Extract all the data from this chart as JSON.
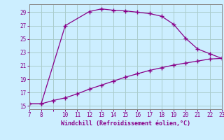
{
  "xlabel": "Windchill (Refroidissement éolien,°C)",
  "bg_color": "#cceeff",
  "grid_color": "#aacccc",
  "line_color": "#880088",
  "marker": "+",
  "upper_x": [
    7,
    8,
    10,
    12,
    13,
    14,
    15,
    16,
    17,
    18,
    19,
    20,
    21,
    22,
    23
  ],
  "upper_y": [
    15.3,
    15.3,
    27.0,
    29.1,
    29.5,
    29.3,
    29.2,
    29.0,
    28.8,
    28.4,
    27.2,
    25.1,
    23.5,
    22.8,
    22.1
  ],
  "lower_x": [
    7,
    8,
    9,
    10,
    11,
    12,
    13,
    14,
    15,
    16,
    17,
    18,
    19,
    20,
    21,
    22,
    23
  ],
  "lower_y": [
    15.3,
    15.3,
    15.8,
    16.2,
    16.8,
    17.5,
    18.1,
    18.7,
    19.3,
    19.8,
    20.3,
    20.7,
    21.1,
    21.4,
    21.7,
    22.0,
    22.1
  ],
  "xlim": [
    7,
    23
  ],
  "ylim": [
    14.5,
    30.2
  ],
  "xticks": [
    7,
    8,
    9,
    10,
    11,
    12,
    13,
    14,
    15,
    16,
    17,
    18,
    19,
    20,
    21,
    22,
    23
  ],
  "xtick_labels": [
    "7",
    "8",
    "",
    "10",
    "11",
    "12",
    "13",
    "14",
    "15",
    "16",
    "17",
    "18",
    "19",
    "20",
    "21",
    "22",
    "23"
  ],
  "yticks": [
    15,
    17,
    19,
    21,
    23,
    25,
    27,
    29
  ],
  "ytick_labels": [
    "15",
    "17",
    "19",
    "21",
    "23",
    "25",
    "27",
    "29"
  ],
  "spine_color": "#888888",
  "tick_color": "#880088",
  "label_fontsize": 5.5,
  "xlabel_fontsize": 6.0
}
